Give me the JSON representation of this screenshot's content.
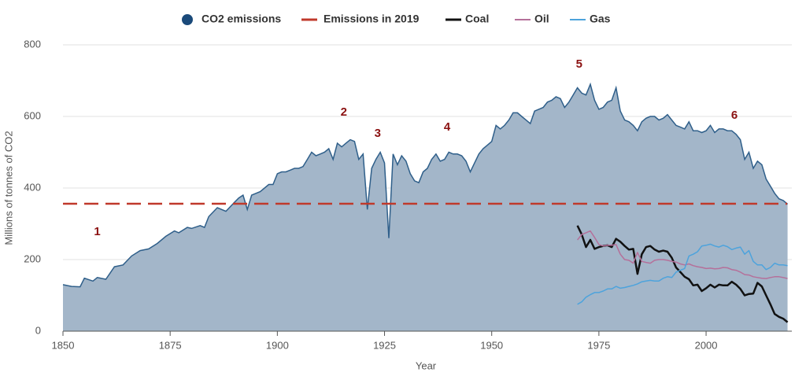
{
  "chart_data": {
    "type": "area",
    "x_label": "Year",
    "y_label": "Millions of tonnes of CO2",
    "xlim": [
      1850,
      2020
    ],
    "xticks": [
      1850,
      1875,
      1900,
      1925,
      1950,
      1975,
      2000
    ],
    "ylim": [
      0,
      800
    ],
    "yticks": [
      0,
      200,
      400,
      600,
      800
    ],
    "grid": true,
    "x": [
      1970,
      1971,
      1972,
      1973,
      1974,
      1975,
      1976,
      1977,
      1978,
      1979,
      1980,
      1981,
      1982,
      1983,
      1984,
      1985,
      1986,
      1987,
      1988,
      1989,
      1990,
      1991,
      1992,
      1993,
      1994,
      1995,
      1996,
      1997,
      1998,
      1999,
      2000,
      2001,
      2002,
      2003,
      2004,
      2005,
      2006,
      2007,
      2008,
      2009,
      2010,
      2011,
      2012,
      2013,
      2014,
      2015,
      2016,
      2017,
      2018,
      2019
    ],
    "series": [
      {
        "name": "CO2 emissions",
        "kind": "area",
        "color": "#2f5f8a",
        "fill": "#a3b6c9",
        "x": [
          1850,
          1852,
          1854,
          1855,
          1857,
          1858,
          1860,
          1862,
          1864,
          1866,
          1868,
          1870,
          1872,
          1874,
          1876,
          1877,
          1879,
          1880,
          1882,
          1883,
          1884,
          1886,
          1888,
          1890,
          1891,
          1892,
          1893,
          1894,
          1896,
          1898,
          1899,
          1900,
          1901,
          1902,
          1903,
          1904,
          1905,
          1906,
          1907,
          1908,
          1909,
          1910,
          1911,
          1912,
          1913,
          1914,
          1915,
          1916,
          1917,
          1918,
          1919,
          1920,
          1921,
          1922,
          1923,
          1924,
          1925,
          1926,
          1927,
          1928,
          1929,
          1930,
          1931,
          1932,
          1933,
          1934,
          1935,
          1936,
          1937,
          1938,
          1939,
          1940,
          1941,
          1942,
          1943,
          1944,
          1945,
          1946,
          1947,
          1948,
          1949,
          1950,
          1951,
          1952,
          1953,
          1954,
          1955,
          1956,
          1957,
          1958,
          1959,
          1960,
          1961,
          1962,
          1963,
          1964,
          1965,
          1966,
          1967,
          1968,
          1969,
          1970,
          1971,
          1972,
          1973,
          1974,
          1975,
          1976,
          1977,
          1978,
          1979,
          1980,
          1981,
          1982,
          1983,
          1984,
          1985,
          1986,
          1987,
          1988,
          1989,
          1990,
          1991,
          1992,
          1993,
          1994,
          1995,
          1996,
          1997,
          1998,
          1999,
          2000,
          2001,
          2002,
          2003,
          2004,
          2005,
          2006,
          2007,
          2008,
          2009,
          2010,
          2011,
          2012,
          2013,
          2014,
          2015,
          2016,
          2017,
          2018,
          2019
        ],
        "values": [
          130,
          125,
          124,
          148,
          140,
          150,
          145,
          180,
          185,
          210,
          225,
          230,
          245,
          265,
          280,
          275,
          290,
          287,
          295,
          290,
          320,
          345,
          335,
          360,
          372,
          380,
          340,
          380,
          390,
          410,
          410,
          440,
          445,
          445,
          450,
          455,
          455,
          460,
          480,
          500,
          490,
          495,
          500,
          510,
          480,
          525,
          515,
          525,
          535,
          530,
          480,
          495,
          340,
          455,
          480,
          500,
          470,
          260,
          495,
          465,
          490,
          475,
          440,
          420,
          415,
          445,
          455,
          480,
          495,
          475,
          480,
          500,
          495,
          495,
          490,
          475,
          445,
          470,
          495,
          510,
          520,
          530,
          575,
          565,
          575,
          590,
          610,
          610,
          600,
          590,
          580,
          615,
          620,
          625,
          640,
          645,
          655,
          650,
          625,
          640,
          660,
          680,
          665,
          660,
          690,
          645,
          620,
          625,
          640,
          645,
          680,
          615,
          590,
          585,
          575,
          560,
          585,
          595,
          600,
          600,
          590,
          595,
          605,
          590,
          575,
          570,
          565,
          585,
          560,
          560,
          555,
          560,
          575,
          555,
          565,
          565,
          560,
          560,
          550,
          535,
          480,
          500,
          455,
          475,
          465,
          425,
          405,
          385,
          370,
          365,
          355
        ]
      },
      {
        "name": "Coal",
        "kind": "line",
        "color": "#111111",
        "values": [
          295,
          270,
          235,
          255,
          230,
          235,
          238,
          240,
          235,
          258,
          250,
          238,
          228,
          230,
          160,
          215,
          235,
          238,
          228,
          222,
          225,
          222,
          205,
          178,
          165,
          152,
          145,
          128,
          130,
          112,
          120,
          130,
          122,
          130,
          128,
          128,
          138,
          130,
          118,
          100,
          104,
          105,
          135,
          125,
          100,
          75,
          48,
          40,
          35,
          25
        ]
      },
      {
        "name": "Oil",
        "kind": "line",
        "color": "#b5709a",
        "values": [
          255,
          270,
          275,
          280,
          262,
          242,
          238,
          240,
          240,
          242,
          215,
          200,
          198,
          190,
          220,
          195,
          192,
          190,
          198,
          200,
          200,
          198,
          195,
          193,
          188,
          185,
          188,
          183,
          180,
          178,
          175,
          176,
          174,
          175,
          178,
          177,
          172,
          170,
          165,
          158,
          157,
          152,
          150,
          148,
          147,
          150,
          152,
          152,
          150,
          147
        ]
      },
      {
        "name": "Gas",
        "kind": "line",
        "color": "#4da3dc",
        "values": [
          75,
          82,
          95,
          102,
          108,
          108,
          112,
          118,
          118,
          125,
          120,
          122,
          125,
          128,
          132,
          138,
          140,
          142,
          140,
          140,
          148,
          152,
          150,
          165,
          170,
          175,
          210,
          215,
          222,
          238,
          240,
          243,
          238,
          235,
          240,
          236,
          228,
          232,
          235,
          215,
          225,
          195,
          185,
          185,
          172,
          178,
          190,
          185,
          185,
          183
        ]
      }
    ],
    "reference_line": {
      "name": "Emissions in 2019",
      "value": 356,
      "color": "#c0392b"
    },
    "annotations": [
      "1",
      "2",
      "3",
      "4",
      "5",
      "6"
    ]
  }
}
